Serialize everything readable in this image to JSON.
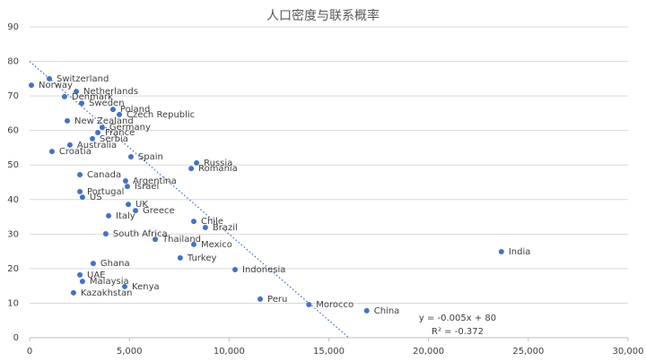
{
  "chart_data": {
    "type": "scatter",
    "title": "人口密度与联系概率",
    "color": "#4472c4",
    "grid": true,
    "xlim": [
      0,
      30000
    ],
    "xticks": [
      0,
      {
        "value": 5000,
        "label": "5,000"
      },
      {
        "value": 10000,
        "label": "10,000"
      },
      {
        "value": 15000,
        "label": "15,000"
      },
      {
        "value": 20000,
        "label": "20,000"
      },
      {
        "value": 25000,
        "label": "25,000"
      },
      {
        "value": 30000,
        "label": "30,000"
      }
    ],
    "ylim": [
      0,
      90
    ],
    "yticks": [
      0,
      10,
      20,
      30,
      40,
      50,
      60,
      70,
      80,
      90
    ],
    "point_labels": [
      "Norway",
      "Switzerland",
      "Netherlands",
      "Denmark",
      "Sweden",
      "Poland",
      "Czech Republic",
      "New Zealand",
      "Germany",
      "France",
      "Serbia",
      "Australia",
      "Croatia",
      "Spain",
      "Russia",
      "Romania",
      "Canada",
      "Argentina",
      "Israel",
      "Portugal",
      "US",
      "UK",
      "Greece",
      "Italy",
      "Chile",
      "Brazil",
      "South Africa",
      "Thailand",
      "Mexico",
      "India",
      "Turkey",
      "Ghana",
      "Indonesia",
      "UAE",
      "Malaysia",
      "Kenya",
      "Kazakhstan",
      "Peru",
      "Morocco",
      "China"
    ],
    "x": [
      90,
      990,
      2340,
      1750,
      2610,
      4180,
      4500,
      1890,
      3640,
      3420,
      3150,
      2020,
      1120,
      5080,
      8370,
      8100,
      2520,
      4810,
      4900,
      2520,
      2650,
      4950,
      5310,
      3960,
      8230,
      8810,
      3820,
      6300,
      8230,
      23650,
      7550,
      3190,
      10300,
      2520,
      2650,
      4770,
      2200,
      11560,
      14000,
      16900
    ],
    "values": [
      73.1,
      75,
      71.3,
      69.8,
      67.9,
      66.1,
      64.6,
      62.8,
      60.9,
      59.4,
      57.6,
      55.8,
      53.9,
      52.4,
      50.6,
      49.0,
      47.2,
      45.4,
      43.8,
      42.3,
      40.7,
      38.6,
      36.8,
      35.3,
      33.7,
      31.9,
      30.1,
      28.5,
      27.0,
      24.9,
      23.1,
      21.5,
      19.7,
      18.2,
      16.3,
      14.8,
      13.0,
      11.2,
      9.6,
      7.8
    ],
    "trendline": {
      "slope": -0.005,
      "intercept": 80
    },
    "annotations": [
      "y = -0.005x + 80",
      "R² = -0.372"
    ]
  }
}
